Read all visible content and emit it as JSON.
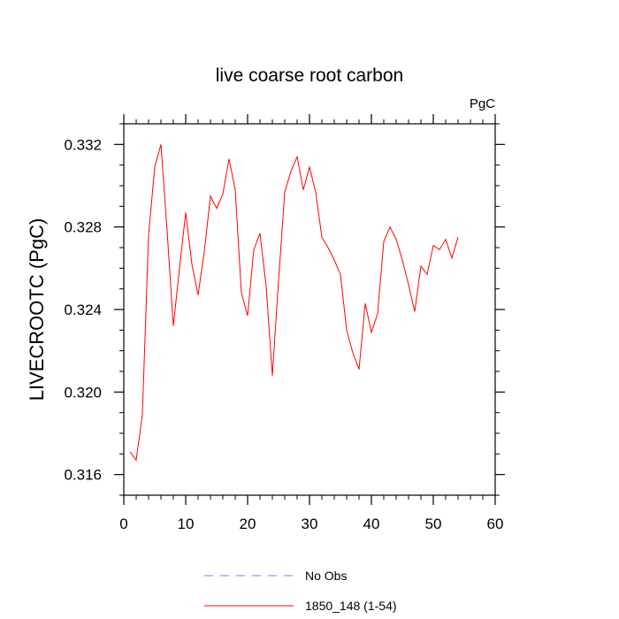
{
  "chart_data": {
    "type": "line",
    "title": "live coarse root carbon",
    "units_label": "PgC",
    "xlabel": "",
    "ylabel": "LIVECROOTC  (PgC)",
    "xlim": [
      0,
      60
    ],
    "ylim": [
      0.315,
      0.333
    ],
    "x_ticks": [
      0,
      10,
      20,
      30,
      40,
      50,
      60
    ],
    "x_tick_labels": [
      "0",
      "10",
      "20",
      "30",
      "40",
      "50",
      "60"
    ],
    "y_ticks": [
      0.316,
      0.32,
      0.324,
      0.328,
      0.332
    ],
    "y_tick_labels": [
      "0.316",
      "0.320",
      "0.324",
      "0.328",
      "0.332"
    ],
    "grid": false,
    "legend_position": "bottom",
    "series": [
      {
        "name": "1850_148 (1-54)",
        "color": "#ff0000",
        "style": "solid",
        "x": [
          1,
          2,
          3,
          4,
          5,
          6,
          7,
          8,
          9,
          10,
          11,
          12,
          13,
          14,
          15,
          16,
          17,
          18,
          19,
          20,
          21,
          22,
          23,
          24,
          25,
          26,
          27,
          28,
          29,
          30,
          31,
          32,
          33,
          34,
          35,
          36,
          37,
          38,
          39,
          40,
          41,
          42,
          43,
          44,
          45,
          46,
          47,
          48,
          49,
          50,
          51,
          52,
          53,
          54
        ],
        "values": [
          0.3171,
          0.3167,
          0.3189,
          0.3276,
          0.3309,
          0.332,
          0.3278,
          0.3232,
          0.326,
          0.3287,
          0.3262,
          0.3247,
          0.3268,
          0.3295,
          0.3289,
          0.3296,
          0.3313,
          0.3298,
          0.3248,
          0.3237,
          0.3269,
          0.3277,
          0.3251,
          0.3208,
          0.3254,
          0.3297,
          0.3307,
          0.3314,
          0.3298,
          0.3309,
          0.3297,
          0.3275,
          0.327,
          0.3264,
          0.3257,
          0.323,
          0.3219,
          0.3211,
          0.3243,
          0.3229,
          0.3238,
          0.3273,
          0.328,
          0.3274,
          0.3264,
          0.3252,
          0.3239,
          0.3261,
          0.3257,
          0.3271,
          0.3269,
          0.3274,
          0.3265,
          0.3275
        ]
      },
      {
        "name": "No Obs",
        "color": "#7b7bff",
        "style": "dashed",
        "x": [],
        "values": []
      }
    ]
  }
}
